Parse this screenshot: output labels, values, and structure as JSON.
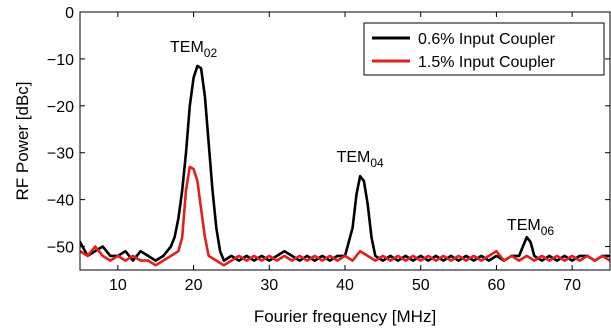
{
  "chart_data": {
    "type": "line",
    "xlabel": "Fourier frequency [MHz]",
    "ylabel": "RF Power [dBc]",
    "xlim": [
      5,
      75
    ],
    "ylim": [
      -55,
      0
    ],
    "xticks": [
      10,
      20,
      30,
      40,
      50,
      60,
      70
    ],
    "yticks": [
      0,
      -10,
      -20,
      -30,
      -40,
      -50
    ],
    "xtick_labels": [
      "10",
      "20",
      "30",
      "40",
      "50",
      "60",
      "70"
    ],
    "ytick_labels": [
      "0",
      "−10",
      "−20",
      "−30",
      "−40",
      "−50"
    ],
    "grid": false,
    "legend_position": "top-right",
    "annotations": [
      {
        "base": "TEM",
        "sub": "02",
        "x": 20,
        "y": -8.5
      },
      {
        "base": "TEM",
        "sub": "04",
        "x": 42,
        "y": -32
      },
      {
        "base": "TEM",
        "sub": "06",
        "x": 64.5,
        "y": -46.5
      }
    ],
    "series": [
      {
        "name": "0.6% Input Coupler",
        "color": "#000000",
        "x": [
          5,
          6,
          7,
          8,
          9,
          10,
          11,
          12,
          13,
          14,
          15,
          16,
          17,
          17.5,
          18,
          18.5,
          19,
          19.5,
          20,
          20.5,
          21,
          21.5,
          22,
          22.5,
          23,
          23.5,
          24,
          25,
          26,
          27,
          28,
          29,
          30,
          31,
          32,
          33,
          34,
          35,
          36,
          37,
          38,
          39,
          40,
          41,
          41.5,
          42,
          42.5,
          43,
          43.5,
          44,
          45,
          46,
          47,
          48,
          49,
          50,
          51,
          52,
          53,
          54,
          55,
          56,
          57,
          58,
          59,
          60,
          61,
          62,
          63,
          63.5,
          64,
          64.5,
          65,
          66,
          67,
          68,
          69,
          70,
          71,
          72,
          73,
          74,
          75
        ],
        "y": [
          -49,
          -52,
          -51,
          -50,
          -52,
          -52,
          -51,
          -53,
          -51,
          -52,
          -53,
          -52,
          -50,
          -48,
          -44,
          -38,
          -30,
          -20,
          -14,
          -11.5,
          -12,
          -18,
          -28,
          -38,
          -46,
          -51,
          -53,
          -52,
          -53,
          -52,
          -53,
          -52,
          -53,
          -52,
          -51,
          -52,
          -53,
          -52,
          -53,
          -52,
          -53,
          -52,
          -52,
          -46,
          -39,
          -35,
          -36,
          -41,
          -48,
          -52,
          -53,
          -52,
          -53,
          -52,
          -53,
          -52,
          -53,
          -52,
          -53,
          -52,
          -53,
          -52,
          -53,
          -52,
          -53,
          -52,
          -53,
          -52,
          -52,
          -50,
          -48,
          -49,
          -52,
          -53,
          -52,
          -53,
          -52,
          -53,
          -52,
          -52,
          -53,
          -52,
          -52
        ]
      },
      {
        "name": "1.5% Input Coupler",
        "color": "#e0201b",
        "x": [
          5,
          6,
          7,
          8,
          9,
          10,
          11,
          12,
          13,
          14,
          15,
          16,
          17,
          18,
          18.5,
          19,
          19.5,
          20,
          20.5,
          21,
          21.5,
          22,
          23,
          24,
          25,
          26,
          27,
          28,
          29,
          30,
          31,
          32,
          33,
          34,
          35,
          36,
          37,
          38,
          39,
          40,
          41,
          42,
          43,
          44,
          45,
          46,
          47,
          48,
          49,
          50,
          51,
          52,
          53,
          54,
          55,
          56,
          57,
          58,
          59,
          60,
          61,
          62,
          63,
          64,
          65,
          66,
          67,
          68,
          69,
          70,
          71,
          72,
          73,
          74,
          75
        ],
        "y": [
          -51,
          -52,
          -50,
          -52,
          -53,
          -52,
          -53,
          -52,
          -53,
          -53,
          -54,
          -53,
          -52,
          -51,
          -48,
          -38,
          -33,
          -33.5,
          -36,
          -42,
          -48,
          -52,
          -53,
          -54,
          -53,
          -52,
          -53,
          -52,
          -53,
          -52,
          -53,
          -52,
          -53,
          -52,
          -53,
          -52,
          -53,
          -52,
          -53,
          -52,
          -53,
          -51,
          -52,
          -53,
          -52,
          -53,
          -52,
          -53,
          -52,
          -53,
          -52,
          -53,
          -52,
          -53,
          -52,
          -53,
          -52,
          -53,
          -52,
          -51,
          -53,
          -52,
          -53,
          -52,
          -53,
          -52,
          -53,
          -52,
          -53,
          -52,
          -53,
          -52,
          -53,
          -52,
          -53
        ]
      }
    ]
  }
}
